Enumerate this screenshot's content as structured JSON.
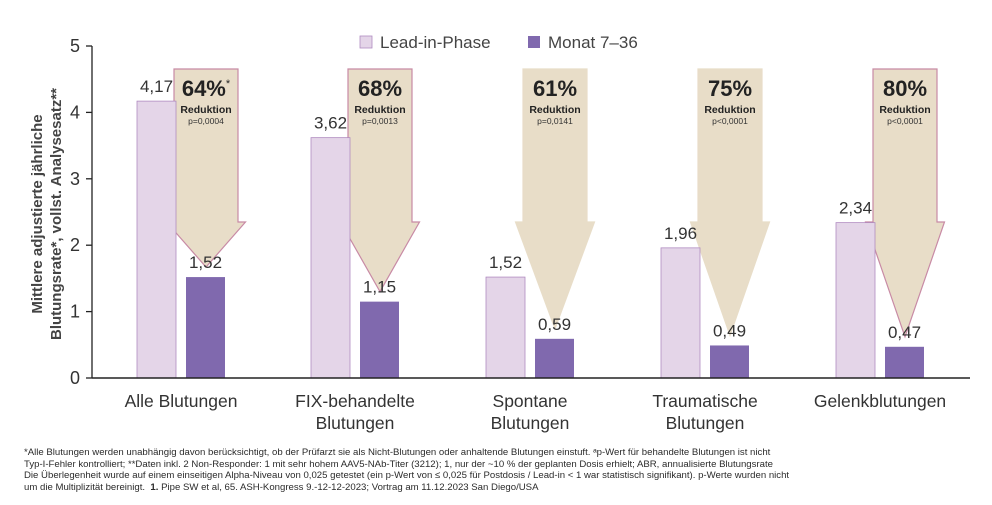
{
  "chart_data": {
    "type": "bar",
    "ylabel_line1": "Mittlere adjustierte jährliche",
    "ylabel_line2": "Blutungsrate*, vollst. Analysesatz**",
    "ylim": [
      0,
      5
    ],
    "yticks": [
      0,
      1,
      2,
      3,
      4,
      5
    ],
    "legend_position": "top-center",
    "categories": [
      [
        "Alle Blutungen"
      ],
      [
        "FIX-behandelte",
        "Blutungen"
      ],
      [
        "Spontane",
        "Blutungen"
      ],
      [
        "Traumatische",
        "Blutungen"
      ],
      [
        "Gelenkblutungen"
      ]
    ],
    "series": [
      {
        "name": "Lead-in-Phase",
        "color": "#e4d5e8",
        "values": [
          4.17,
          3.62,
          1.52,
          1.96,
          2.34
        ],
        "labels": [
          "4,17",
          "3,62",
          "1,52",
          "1,96",
          "2,34"
        ]
      },
      {
        "name": "Monat 7–36",
        "color": "#8069ae",
        "values": [
          1.52,
          1.15,
          0.59,
          0.49,
          0.47
        ],
        "labels": [
          "1,52",
          "1,15",
          "0,59",
          "0,49",
          "0,47"
        ]
      }
    ],
    "annotations": [
      {
        "percent": "64%",
        "sup": "*",
        "label": "Reduktion",
        "pvalue": "p=0,0004",
        "outline": "#c88aa5"
      },
      {
        "percent": "68%",
        "sup": "",
        "label": "Reduktion",
        "pvalue": "p=0,0013",
        "outline": "#c88aa5"
      },
      {
        "percent": "61%",
        "sup": "",
        "label": "Reduktion",
        "pvalue": "p=0,0141",
        "outline": "#e8ddc8"
      },
      {
        "percent": "75%",
        "sup": "",
        "label": "Reduktion",
        "pvalue": "p<0,0001",
        "outline": "#e8ddc8"
      },
      {
        "percent": "80%",
        "sup": "",
        "label": "Reduktion",
        "pvalue": "p<0,0001",
        "outline": "#c88aa5"
      }
    ],
    "arrow_fill": "#e8ddc8"
  },
  "footnote": {
    "line1": "*Alle Blutungen werden unabhängig davon berücksichtigt, ob der Prüfarzt sie als Nicht-Blutungen oder anhaltende Blutungen einstuft. ᵃp-Wert für behandelte Blutungen ist nicht",
    "line2": "Typ-I-Fehler kontrolliert; **Daten inkl. 2 Non-Responder: 1 mit sehr hohem AAV5-NAb-Titer (3212); 1, nur der ~10 % der geplanten Dosis erhielt; ABR, annualisierte Blutungsrate",
    "line3": "Die Überlegenheit wurde auf einem einseitigen Alpha-Niveau von 0,025 getestet (ein p-Wert von ≤ 0,025 für Postdosis / Lead-in < 1 war statistisch signifikant). p-Werte wurden nicht",
    "line4a": "um die Multiplizität bereinigt.",
    "line4b": "1.",
    "line4c": "Pipe SW et al, 65. ASH-Kongress 9.-12-12-2023; Vortrag am 11.12.2023 San Diego/USA"
  }
}
